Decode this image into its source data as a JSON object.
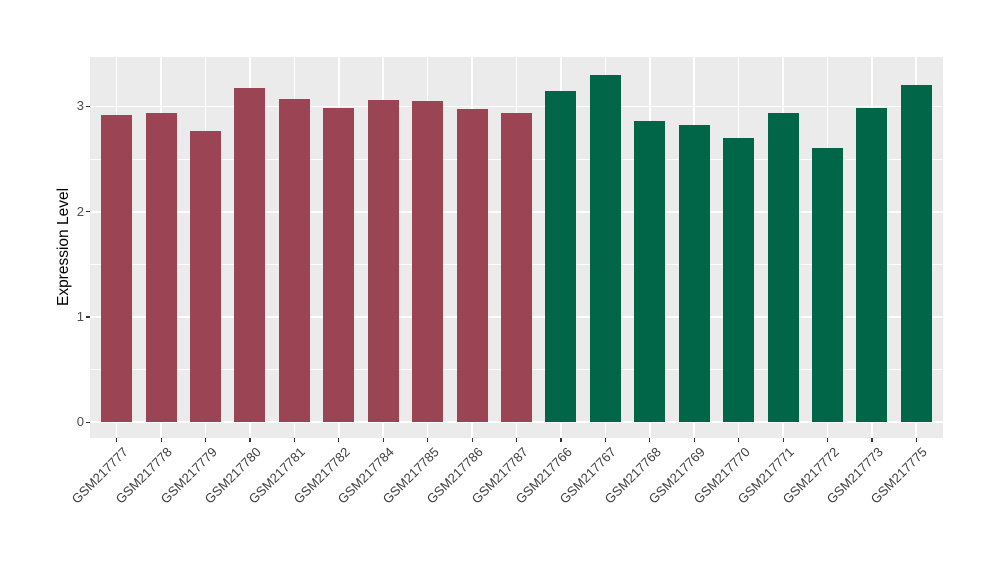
{
  "figure": {
    "background_color": "#FFFFFF",
    "panel_color": "#EBEBEB",
    "grid_color": "#FFFFFF",
    "tick_mark_color": "#333333",
    "axis_text_color": "#4D4D4D",
    "axis_title_color": "#000000"
  },
  "chart_data": {
    "type": "bar",
    "title": "",
    "xlabel": "",
    "ylabel": "Expression Level",
    "categories": [
      "GSM217777",
      "GSM217778",
      "GSM217779",
      "GSM217780",
      "GSM217781",
      "GSM217782",
      "GSM217784",
      "GSM217785",
      "GSM217786",
      "GSM217787",
      "GSM217766",
      "GSM217767",
      "GSM217768",
      "GSM217769",
      "GSM217770",
      "GSM217771",
      "GSM217772",
      "GSM217773",
      "GSM217775"
    ],
    "values": [
      2.92,
      2.94,
      2.77,
      3.18,
      3.07,
      2.99,
      3.06,
      3.05,
      2.98,
      2.94,
      3.15,
      3.3,
      2.86,
      2.82,
      2.7,
      2.94,
      2.61,
      2.99,
      3.2
    ],
    "groups": [
      {
        "name": "left-red-group",
        "color": "#9B4453",
        "start": 0,
        "end": 9
      },
      {
        "name": "right-green-group",
        "color": "#006647",
        "start": 10,
        "end": 18
      }
    ],
    "y_ticks": [
      0,
      1,
      2,
      3
    ],
    "y_minor_ticks": [
      0.5,
      1.5,
      2.5
    ],
    "ylim": [
      -0.15,
      3.47
    ],
    "grid": true,
    "legend": false,
    "bar_width_fraction": 0.7,
    "x_expand": 0.6,
    "x_tick_angle": 45
  }
}
